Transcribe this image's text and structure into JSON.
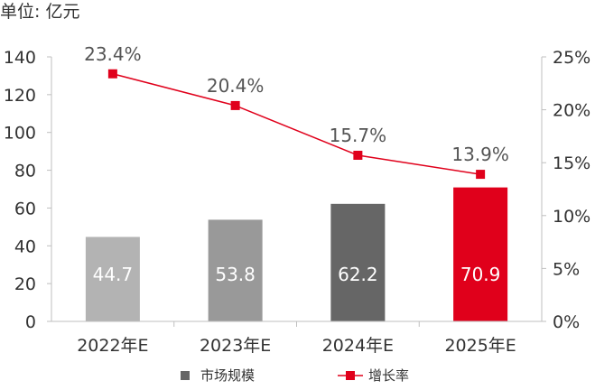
{
  "unit_label": "单位: 亿元",
  "chart_data": {
    "type": "bar",
    "categories": [
      "2022年E",
      "2023年E",
      "2024年E",
      "2025年E"
    ],
    "series": [
      {
        "name": "市场规模",
        "type": "bar",
        "axis": "left",
        "values": [
          44.7,
          53.8,
          62.2,
          70.9
        ],
        "colors": [
          "#b3b3b3",
          "#999999",
          "#666666",
          "#e0001b"
        ]
      },
      {
        "name": "增长率",
        "type": "line",
        "axis": "right",
        "values": [
          23.4,
          20.4,
          15.7,
          13.9
        ],
        "color": "#e0001b"
      }
    ],
    "left_axis": {
      "ylim": [
        0,
        140
      ],
      "ticks": [
        "0",
        "20",
        "40",
        "60",
        "80",
        "100",
        "120",
        "140"
      ]
    },
    "right_axis": {
      "ylim": [
        0,
        25
      ],
      "ticks": [
        "0%",
        "5%",
        "10%",
        "15%",
        "20%",
        "25%"
      ]
    },
    "bar_labels": [
      "44.7",
      "53.8",
      "62.2",
      "70.9"
    ],
    "rate_labels": [
      "23.4%",
      "20.4%",
      "15.7%",
      "13.9%"
    ],
    "grid": false,
    "legend_position": "bottom"
  }
}
